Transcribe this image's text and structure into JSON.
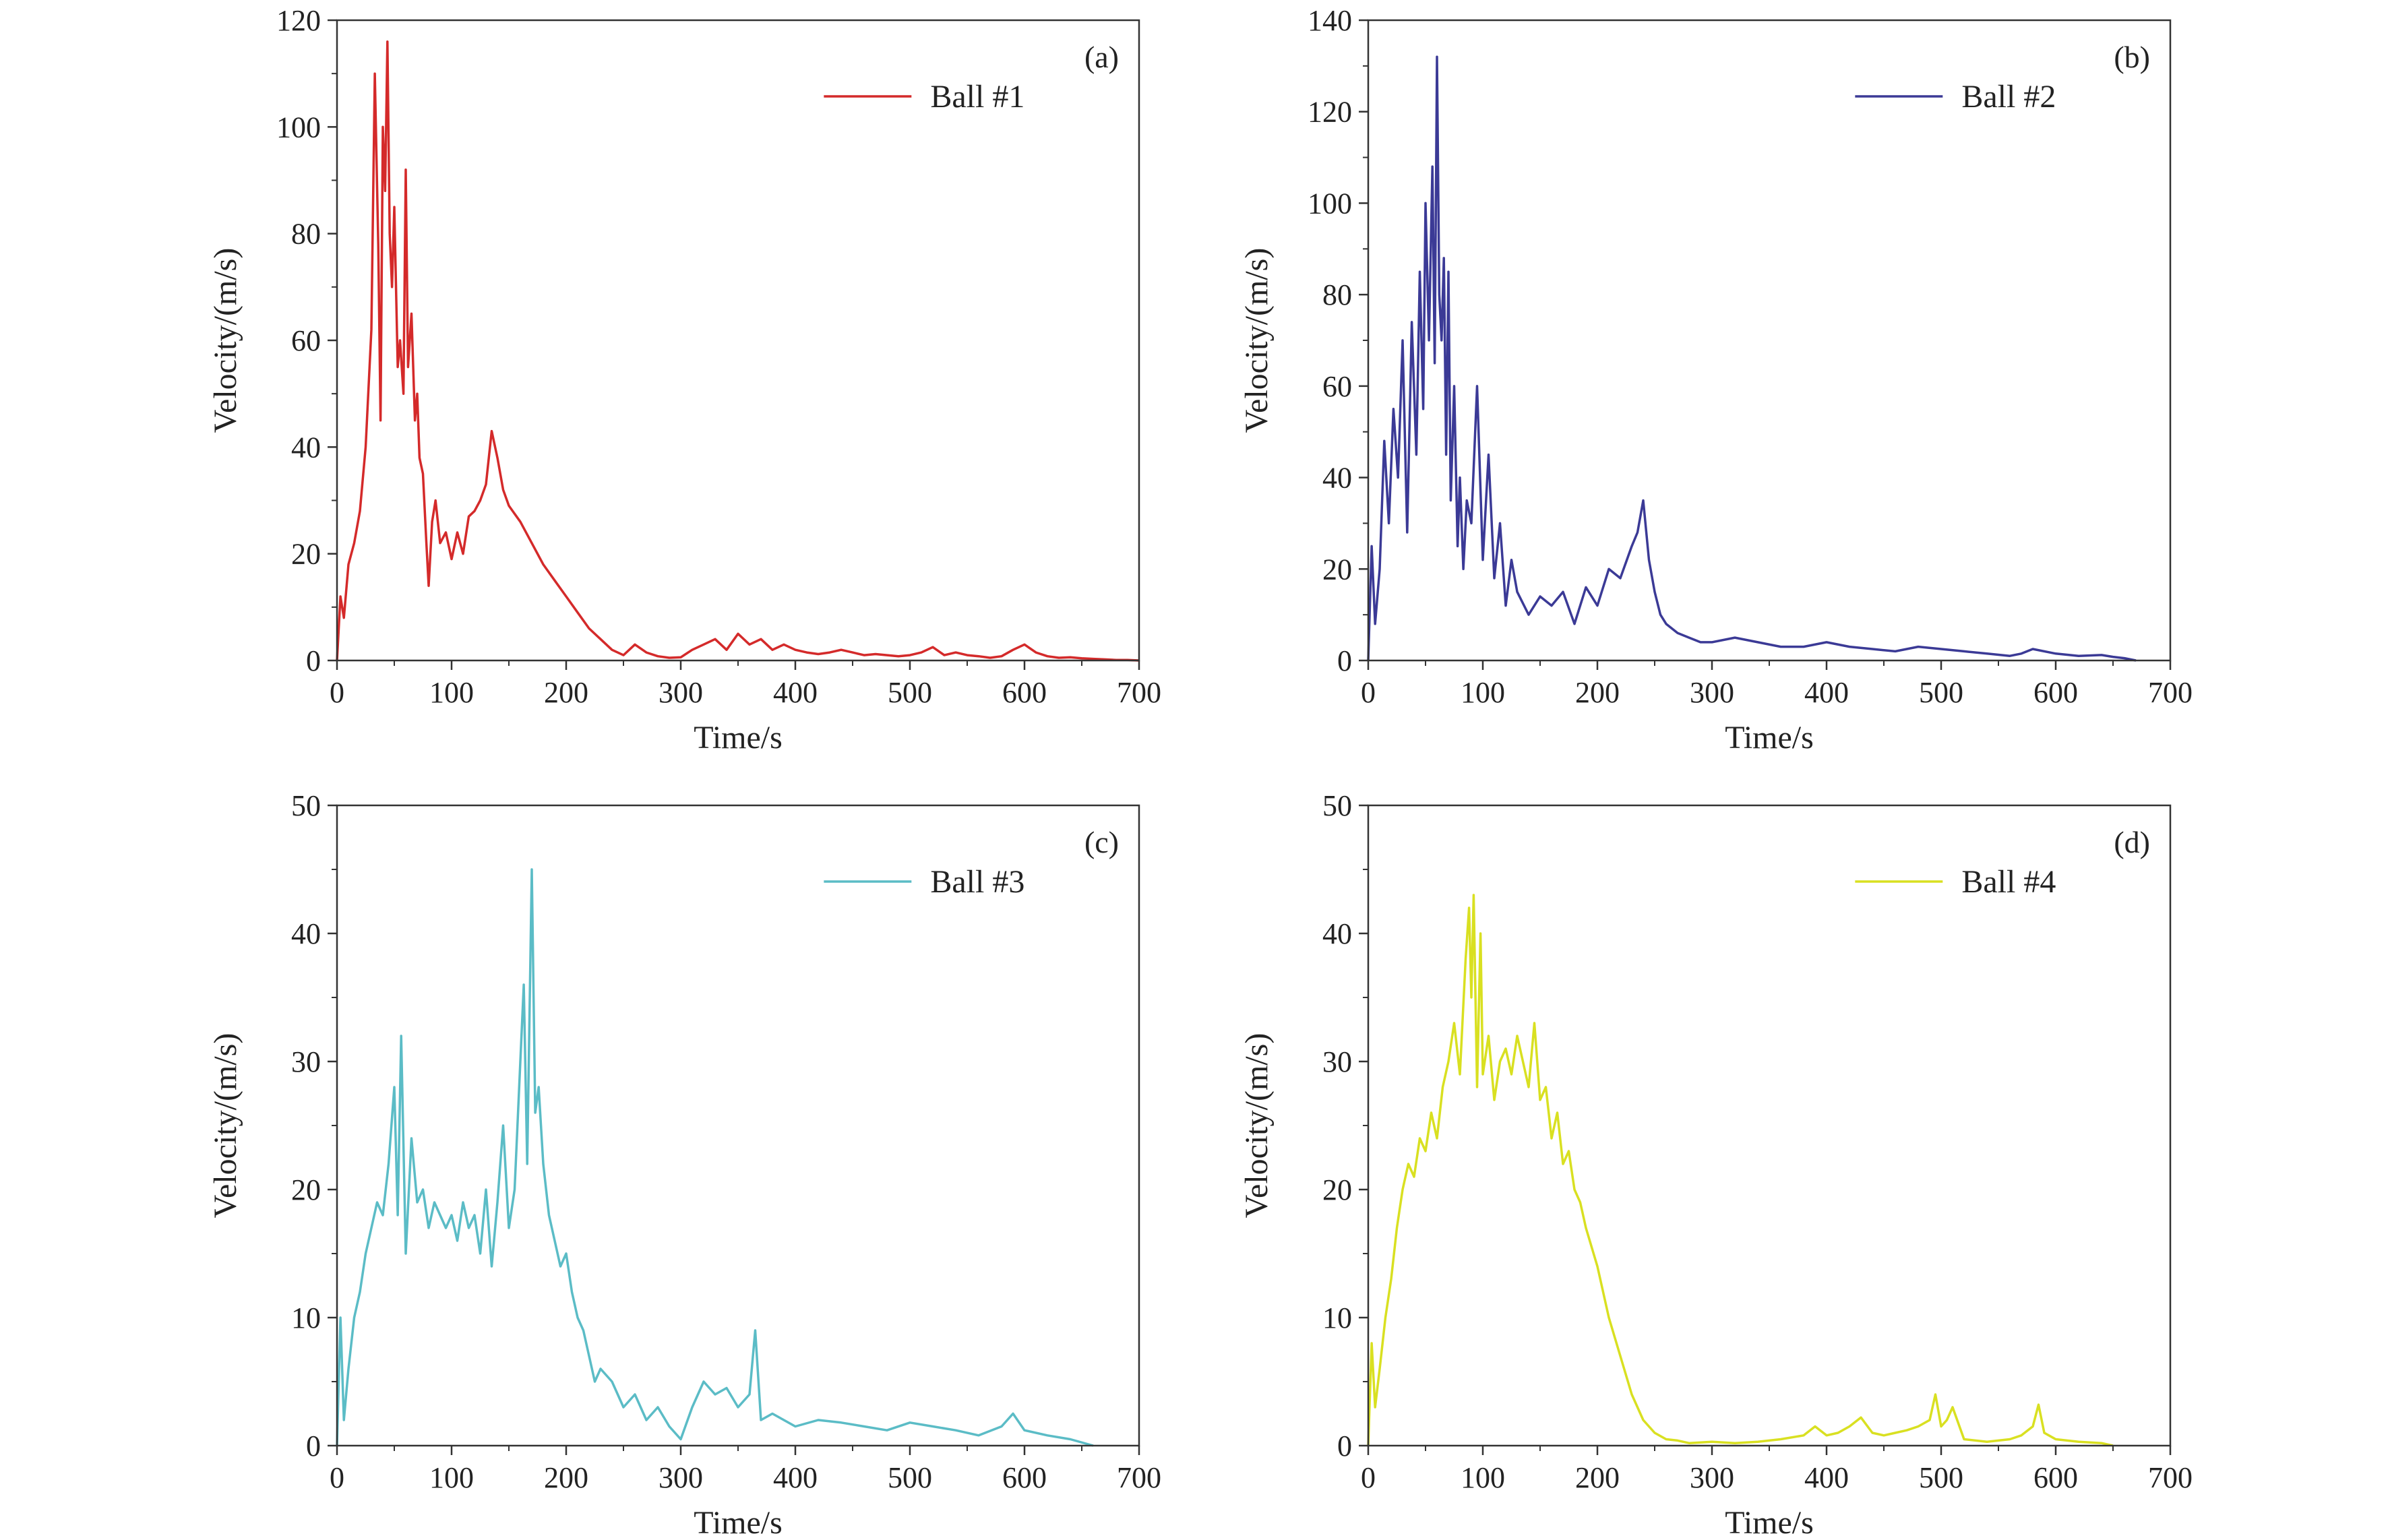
{
  "chart_data": [
    {
      "type": "line",
      "panel": "(a)",
      "xlabel": "Time/s",
      "ylabel": "Velocity/(m/s)",
      "xlim": [
        0,
        700
      ],
      "ylim": [
        0,
        120
      ],
      "xticks": [
        "0",
        "100",
        "200",
        "300",
        "400",
        "500",
        "600",
        "700"
      ],
      "yticks": [
        "0",
        "20",
        "40",
        "60",
        "80",
        "100",
        "120"
      ],
      "legend_position": "top-right",
      "series": [
        {
          "name": "Ball #1",
          "color": "#d42a2a",
          "x": [
            0,
            3,
            6,
            10,
            15,
            20,
            25,
            30,
            33,
            36,
            38,
            40,
            42,
            44,
            46,
            48,
            50,
            53,
            55,
            58,
            60,
            62,
            65,
            68,
            70,
            72,
            75,
            78,
            80,
            83,
            86,
            90,
            95,
            100,
            105,
            110,
            115,
            120,
            125,
            130,
            135,
            140,
            145,
            150,
            160,
            170,
            180,
            190,
            200,
            210,
            220,
            230,
            240,
            250,
            260,
            270,
            280,
            290,
            300,
            310,
            320,
            330,
            340,
            350,
            360,
            370,
            380,
            390,
            400,
            410,
            420,
            430,
            440,
            450,
            460,
            470,
            480,
            490,
            500,
            510,
            520,
            530,
            540,
            550,
            560,
            570,
            580,
            590,
            600,
            610,
            620,
            630,
            640,
            650,
            660,
            670,
            680,
            690,
            700
          ],
          "y": [
            0,
            12,
            8,
            18,
            22,
            28,
            40,
            62,
            110,
            78,
            45,
            100,
            88,
            116,
            80,
            70,
            85,
            55,
            60,
            50,
            92,
            55,
            65,
            45,
            50,
            38,
            35,
            22,
            14,
            26,
            30,
            22,
            24,
            19,
            24,
            20,
            27,
            28,
            30,
            33,
            43,
            38,
            32,
            29,
            26,
            22,
            18,
            15,
            12,
            9,
            6,
            4,
            2,
            1,
            3,
            1.5,
            0.8,
            0.5,
            0.6,
            2,
            3,
            4,
            2,
            5,
            3,
            4,
            2,
            3,
            2,
            1.5,
            1.2,
            1.5,
            2,
            1.5,
            1,
            1.2,
            1,
            0.8,
            1,
            1.5,
            2.5,
            1,
            1.5,
            1,
            0.8,
            0.5,
            0.8,
            2,
            3,
            1.5,
            0.8,
            0.5,
            0.6,
            0.4,
            0.3,
            0.2,
            0.1,
            0.1,
            0
          ]
        }
      ]
    },
    {
      "type": "line",
      "panel": "(b)",
      "xlabel": "Time/s",
      "ylabel": "Velocity/(m/s)",
      "xlim": [
        0,
        700
      ],
      "ylim": [
        0,
        140
      ],
      "xticks": [
        "0",
        "100",
        "200",
        "300",
        "400",
        "500",
        "600",
        "700"
      ],
      "yticks": [
        "0",
        "20",
        "40",
        "60",
        "80",
        "100",
        "120",
        "140"
      ],
      "legend_position": "top-right",
      "series": [
        {
          "name": "Ball #2",
          "color": "#3b3a96",
          "x": [
            0,
            3,
            6,
            10,
            14,
            18,
            22,
            26,
            30,
            34,
            38,
            42,
            45,
            48,
            50,
            53,
            56,
            58,
            60,
            62,
            64,
            66,
            68,
            70,
            72,
            75,
            78,
            80,
            83,
            86,
            90,
            95,
            100,
            105,
            110,
            115,
            120,
            125,
            130,
            140,
            150,
            160,
            170,
            180,
            190,
            200,
            210,
            220,
            230,
            235,
            240,
            245,
            250,
            255,
            260,
            270,
            280,
            290,
            300,
            320,
            340,
            360,
            380,
            400,
            420,
            440,
            460,
            480,
            500,
            520,
            540,
            560,
            570,
            580,
            600,
            620,
            640,
            650,
            660,
            670
          ],
          "y": [
            0,
            25,
            8,
            20,
            48,
            30,
            55,
            40,
            70,
            28,
            74,
            45,
            85,
            55,
            100,
            70,
            108,
            65,
            132,
            80,
            70,
            88,
            45,
            85,
            35,
            60,
            25,
            40,
            20,
            35,
            30,
            60,
            22,
            45,
            18,
            30,
            12,
            22,
            15,
            10,
            14,
            12,
            15,
            8,
            16,
            12,
            20,
            18,
            25,
            28,
            35,
            22,
            15,
            10,
            8,
            6,
            5,
            4,
            4,
            5,
            4,
            3,
            3,
            4,
            3,
            2.5,
            2,
            3,
            2.5,
            2,
            1.5,
            1,
            1.5,
            2.5,
            1.5,
            1,
            1.2,
            0.8,
            0.5,
            0
          ]
        }
      ]
    },
    {
      "type": "line",
      "panel": "(c)",
      "xlabel": "Time/s",
      "ylabel": "Velocity/(m/s)",
      "xlim": [
        0,
        700
      ],
      "ylim": [
        0,
        50
      ],
      "xticks": [
        "0",
        "100",
        "200",
        "300",
        "400",
        "500",
        "600",
        "700"
      ],
      "yticks": [
        "0",
        "10",
        "20",
        "30",
        "40",
        "50"
      ],
      "legend_position": "top-right",
      "series": [
        {
          "name": "Ball #3",
          "color": "#5bbcc6",
          "x": [
            0,
            3,
            6,
            10,
            15,
            20,
            25,
            30,
            35,
            40,
            45,
            50,
            53,
            56,
            60,
            65,
            70,
            75,
            80,
            85,
            90,
            95,
            100,
            105,
            110,
            115,
            120,
            125,
            130,
            135,
            140,
            145,
            150,
            155,
            160,
            163,
            166,
            170,
            173,
            176,
            180,
            185,
            190,
            195,
            200,
            205,
            210,
            215,
            220,
            225,
            230,
            240,
            250,
            260,
            270,
            280,
            290,
            300,
            310,
            320,
            330,
            340,
            350,
            360,
            365,
            370,
            380,
            390,
            400,
            420,
            440,
            460,
            480,
            500,
            520,
            540,
            560,
            580,
            590,
            600,
            620,
            640,
            660
          ],
          "y": [
            0,
            10,
            2,
            6,
            10,
            12,
            15,
            17,
            19,
            18,
            22,
            28,
            18,
            32,
            15,
            24,
            19,
            20,
            17,
            19,
            18,
            17,
            18,
            16,
            19,
            17,
            18,
            15,
            20,
            14,
            19,
            25,
            17,
            20,
            30,
            36,
            22,
            45,
            26,
            28,
            22,
            18,
            16,
            14,
            15,
            12,
            10,
            9,
            7,
            5,
            6,
            5,
            3,
            4,
            2,
            3,
            1.5,
            0.5,
            3,
            5,
            4,
            4.5,
            3,
            4,
            9,
            2,
            2.5,
            2,
            1.5,
            2,
            1.8,
            1.5,
            1.2,
            1.8,
            1.5,
            1.2,
            0.8,
            1.5,
            2.5,
            1.2,
            0.8,
            0.5,
            0
          ]
        }
      ]
    },
    {
      "type": "line",
      "panel": "(d)",
      "xlabel": "Time/s",
      "ylabel": "Velocity/(m/s)",
      "xlim": [
        0,
        700
      ],
      "ylim": [
        0,
        50
      ],
      "xticks": [
        "0",
        "100",
        "200",
        "300",
        "400",
        "500",
        "600",
        "700"
      ],
      "yticks": [
        "0",
        "10",
        "20",
        "30",
        "40",
        "50"
      ],
      "legend_position": "top-right",
      "series": [
        {
          "name": "Ball #4",
          "color": "#d9e021",
          "x": [
            0,
            3,
            6,
            10,
            15,
            20,
            25,
            30,
            35,
            40,
            45,
            50,
            55,
            60,
            65,
            70,
            75,
            80,
            85,
            88,
            90,
            92,
            95,
            98,
            100,
            105,
            110,
            115,
            120,
            125,
            130,
            135,
            140,
            145,
            150,
            155,
            160,
            165,
            170,
            175,
            180,
            185,
            190,
            200,
            210,
            220,
            230,
            240,
            250,
            260,
            270,
            280,
            300,
            320,
            340,
            360,
            380,
            390,
            400,
            410,
            420,
            430,
            440,
            450,
            460,
            470,
            480,
            490,
            495,
            500,
            505,
            510,
            520,
            540,
            560,
            570,
            580,
            585,
            590,
            600,
            620,
            640,
            650
          ],
          "y": [
            0,
            8,
            3,
            6,
            10,
            13,
            17,
            20,
            22,
            21,
            24,
            23,
            26,
            24,
            28,
            30,
            33,
            29,
            38,
            42,
            35,
            43,
            28,
            40,
            29,
            32,
            27,
            30,
            31,
            29,
            32,
            30,
            28,
            33,
            27,
            28,
            24,
            26,
            22,
            23,
            20,
            19,
            17,
            14,
            10,
            7,
            4,
            2,
            1,
            0.5,
            0.4,
            0.2,
            0.3,
            0.2,
            0.3,
            0.5,
            0.8,
            1.5,
            0.8,
            1,
            1.5,
            2.2,
            1,
            0.8,
            1,
            1.2,
            1.5,
            2,
            4,
            1.5,
            2,
            3,
            0.5,
            0.3,
            0.5,
            0.8,
            1.5,
            3.2,
            1,
            0.5,
            0.3,
            0.2,
            0
          ]
        }
      ]
    }
  ]
}
